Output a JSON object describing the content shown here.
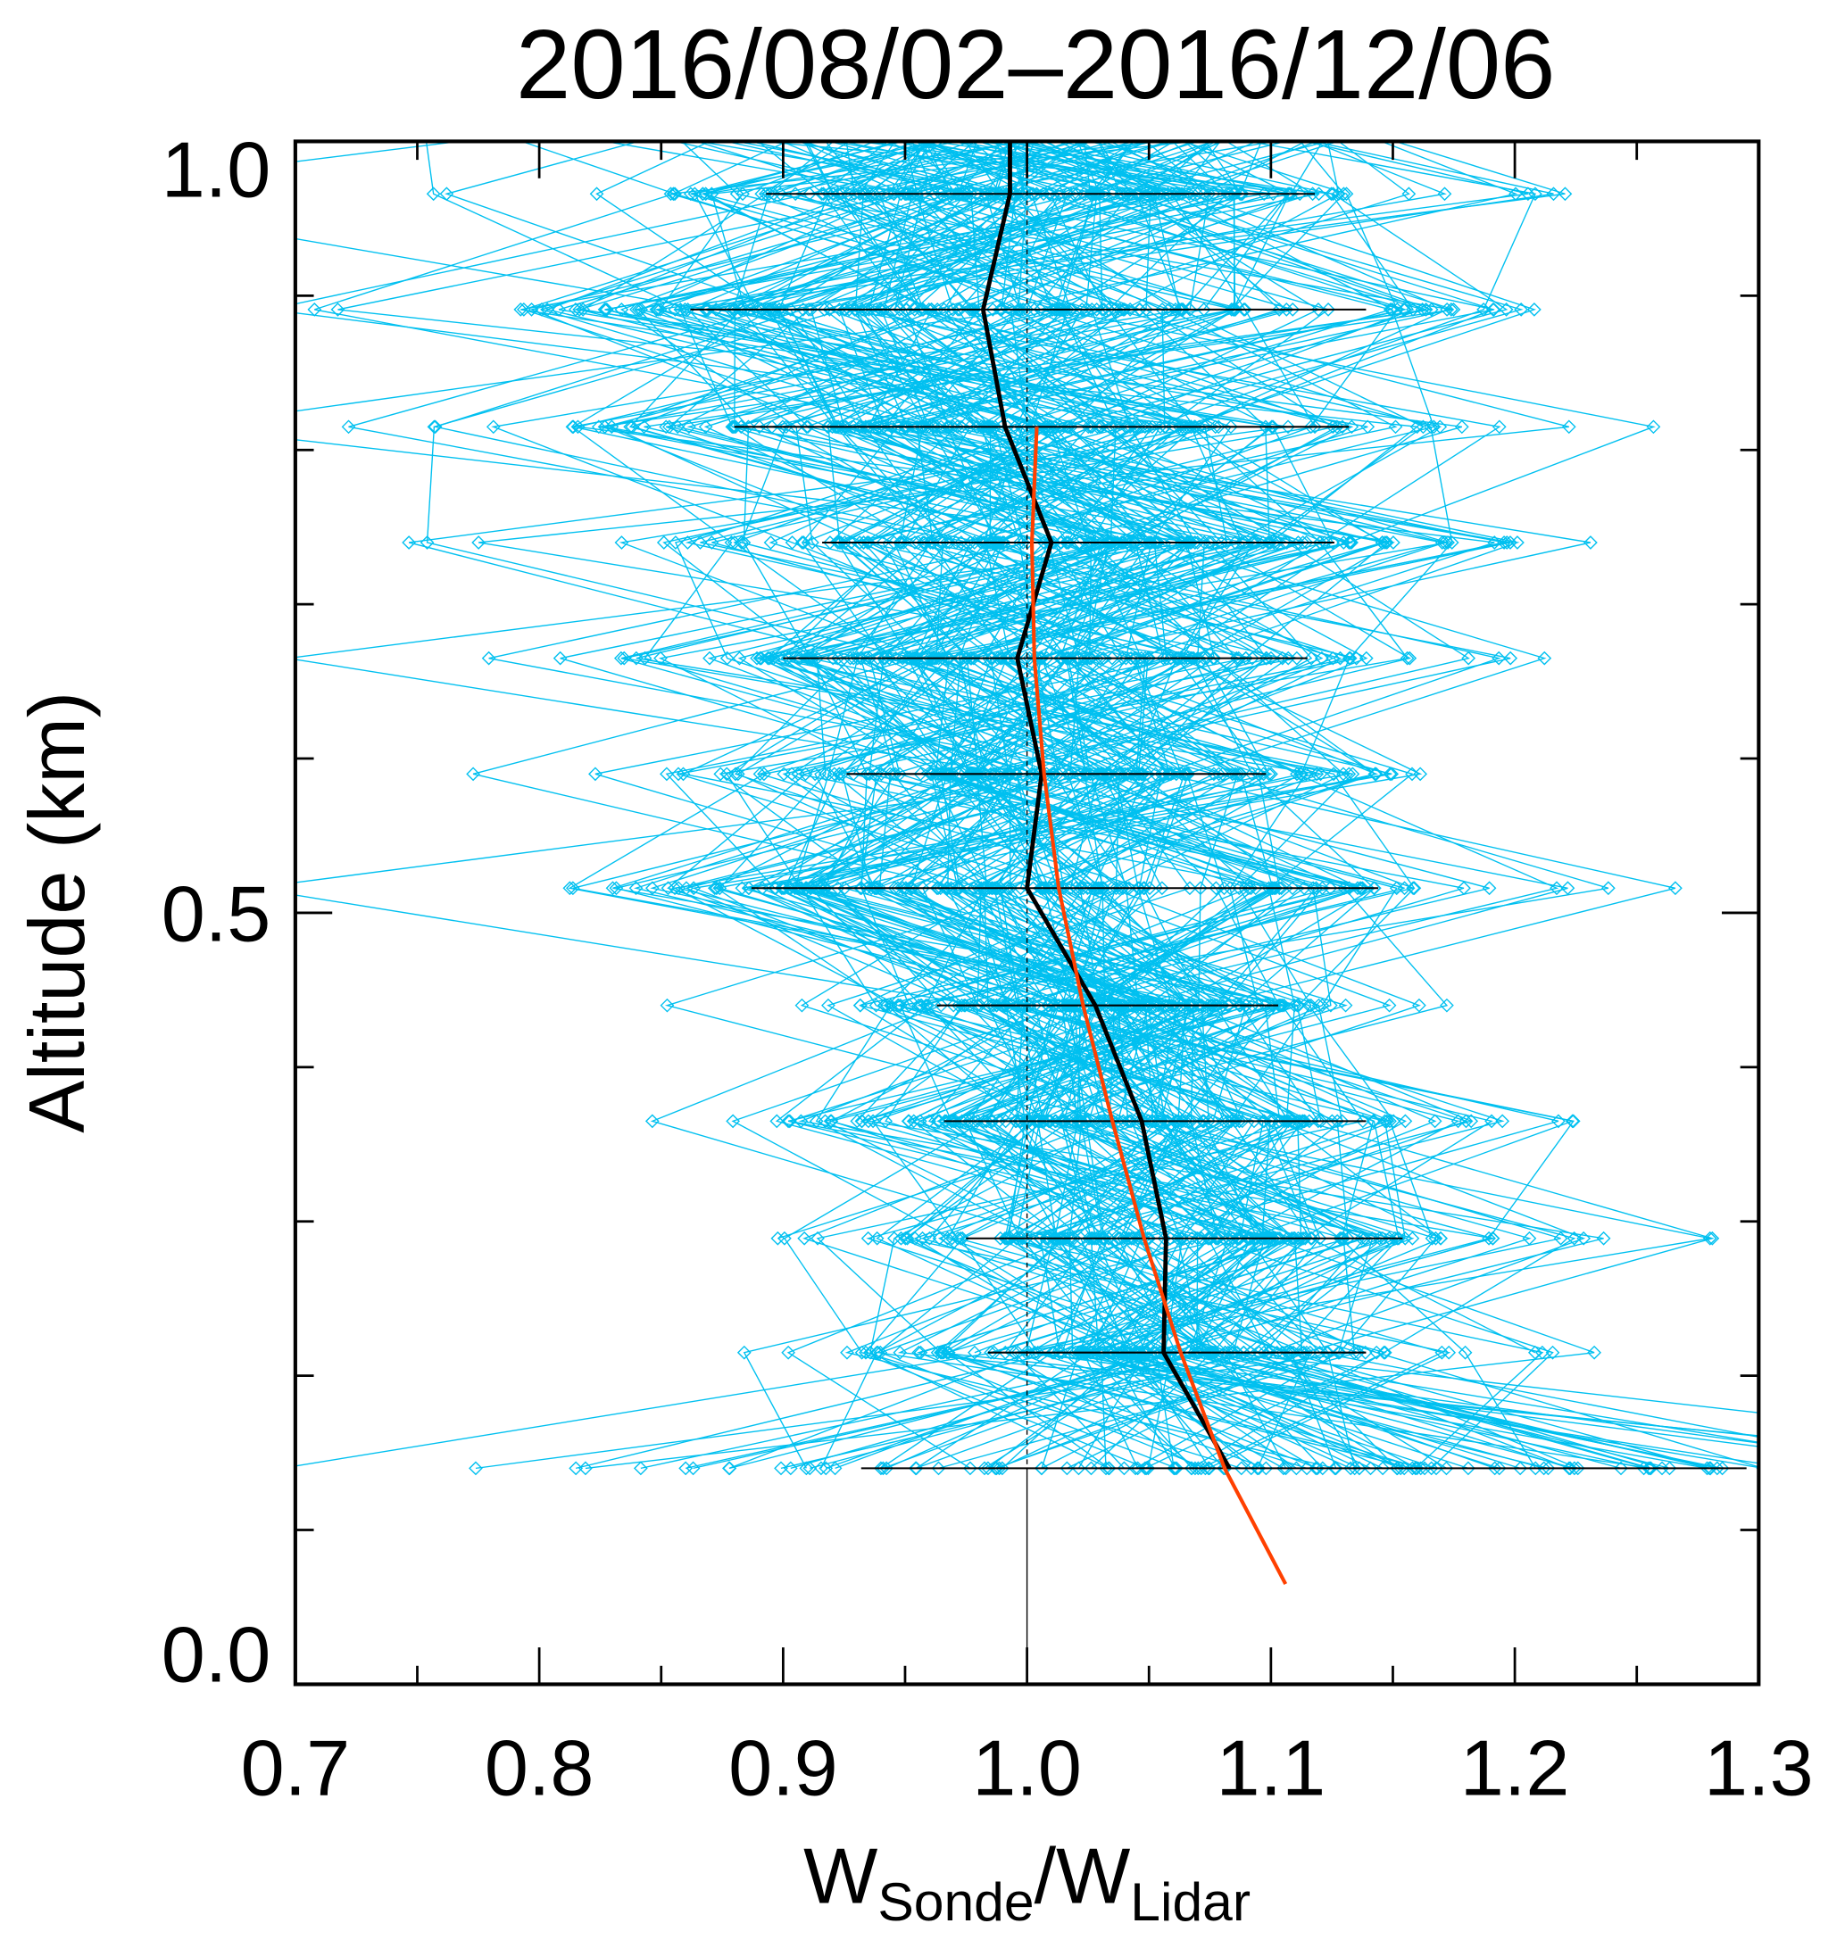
{
  "chart_data": {
    "type": "line",
    "title": "2016/08/02–2016/12/06",
    "xlabel": {
      "main": "W",
      "sub1": "Sonde",
      "sep": "/W",
      "sub2": "Lidar"
    },
    "ylabel": "Altitude (km)",
    "xlim": [
      0.7,
      1.3
    ],
    "ylim": [
      0.0,
      1.0
    ],
    "x_ticks": [
      "0.7",
      "0.8",
      "0.9",
      "1.0",
      "1.1",
      "1.2",
      "1.3"
    ],
    "x_tick_values": [
      0.7,
      0.8,
      0.9,
      1.0,
      1.1,
      1.2,
      1.3
    ],
    "y_ticks": [
      "0.0",
      "0.5",
      "1.0"
    ],
    "y_tick_values": [
      0.0,
      0.5,
      1.0
    ],
    "grid": false,
    "reference_line_x": 1.0,
    "colors": {
      "profiles": "#00c0f0",
      "mean": "#000000",
      "fit": "#ff4000"
    },
    "series": [
      {
        "role": "mean-profile",
        "altitude": [
          0.966,
          0.891,
          0.815,
          0.74,
          0.665,
          0.59,
          0.516,
          0.44,
          0.365,
          0.289,
          0.215,
          0.14
        ],
        "x": [
          0.993,
          0.982,
          0.991,
          1.01,
          0.996,
          1.006,
          1.0,
          1.028,
          1.047,
          1.057,
          1.056,
          1.083
        ],
        "x_low": [
          0.893,
          0.862,
          0.88,
          0.916,
          0.9,
          0.926,
          0.887,
          0.963,
          0.966,
          0.975,
          0.984,
          0.932
        ],
        "x_high": [
          1.118,
          1.139,
          1.132,
          1.126,
          1.115,
          1.098,
          1.144,
          1.103,
          1.139,
          1.154,
          1.139,
          1.295
        ]
      },
      {
        "role": "fit",
        "altitude": [
          0.815,
          0.74,
          0.665,
          0.59,
          0.516,
          0.44,
          0.365,
          0.289,
          0.215,
          0.14,
          0.065
        ],
        "x": [
          1.004,
          1.002,
          1.003,
          1.007,
          1.013,
          1.023,
          1.035,
          1.048,
          1.063,
          1.081,
          1.106
        ]
      }
    ]
  }
}
